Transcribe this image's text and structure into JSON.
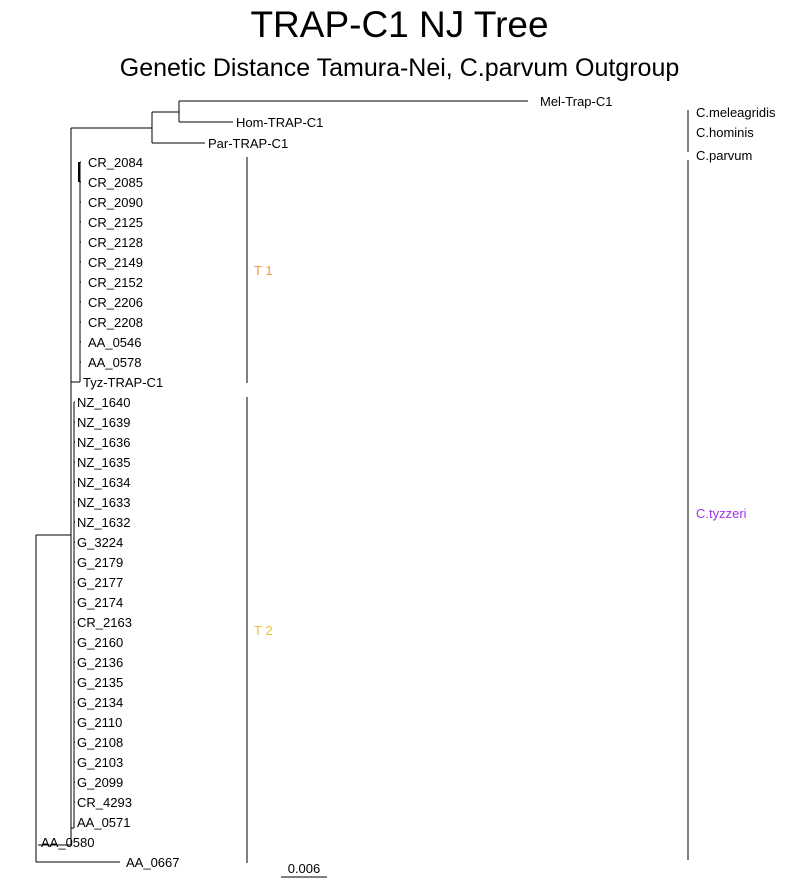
{
  "title": "TRAP-C1 NJ Tree",
  "subtitle": "Genetic Distance Tamura-Nei, C.parvum Outgroup",
  "tips": [
    "Mel-Trap-C1",
    "Hom-TRAP-C1",
    "Par-TRAP-C1",
    "CR_2084",
    "CR_2085",
    "CR_2090",
    "CR_2125",
    "CR_2128",
    "CR_2149",
    "CR_2152",
    "CR_2206",
    "CR_2208",
    "AA_0546",
    "AA_0578",
    "Tyz-TRAP-C1",
    "NZ_1640",
    "NZ_1639",
    "NZ_1636",
    "NZ_1635",
    "NZ_1634",
    "NZ_1633",
    "NZ_1632",
    "G_3224",
    "G_2179",
    "G_2177",
    "G_2174",
    "CR_2163",
    "G_2160",
    "G_2136",
    "G_2135",
    "G_2134",
    "G_2110",
    "G_2108",
    "G_2103",
    "G_2099",
    "CR_4293",
    "AA_0571",
    "AA_0580",
    "AA_0667"
  ],
  "clades": [
    {
      "label": "T 1",
      "color": "#f29b37",
      "from": "CR_2084",
      "to": "Tyz-TRAP-C1"
    },
    {
      "label": "T 2",
      "color": "#ecc232",
      "from": "NZ_1640",
      "to": "AA_0667"
    }
  ],
  "species": [
    {
      "label": "C.meleagridis",
      "color": "#000000",
      "tips": [
        "Mel-Trap-C1"
      ]
    },
    {
      "label": "C.hominis",
      "color": "#000000",
      "tips": [
        "Hom-TRAP-C1"
      ]
    },
    {
      "label": "C.parvum",
      "color": "#000000",
      "tips": [
        "Par-TRAP-C1"
      ]
    },
    {
      "label": "C.tyzzeri",
      "color": "#a033e8",
      "tips": [
        "CR_2084",
        "AA_0667"
      ]
    }
  ],
  "scale_bar": {
    "label": "0.006",
    "length": 0.006
  }
}
